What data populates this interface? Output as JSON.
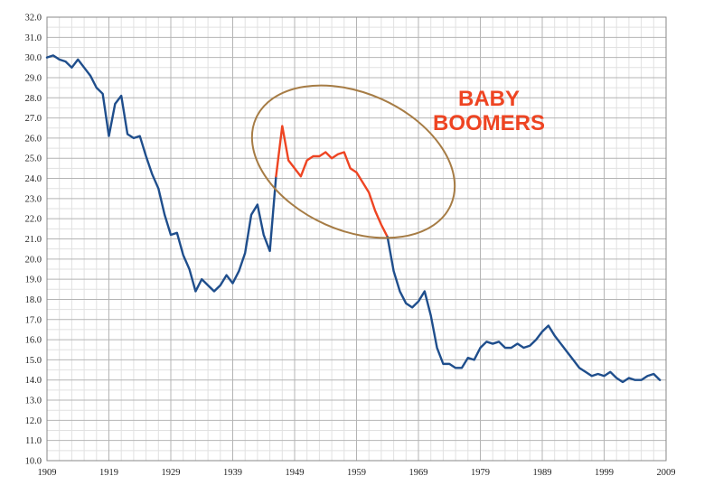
{
  "chart_data": {
    "type": "line",
    "title": "",
    "xlabel": "",
    "ylabel": "",
    "xlim": [
      1909,
      2009
    ],
    "ylim": [
      10,
      32
    ],
    "x_ticks": [
      "1909",
      "1919",
      "1929",
      "1939",
      "1949",
      "1959",
      "1969",
      "1979",
      "1989",
      "1999",
      "2009"
    ],
    "y_ticks": [
      "10.0",
      "11.0",
      "12.0",
      "13.0",
      "14.0",
      "15.0",
      "16.0",
      "17.0",
      "18.0",
      "19.0",
      "20.0",
      "21.0",
      "22.0",
      "23.0",
      "24.0",
      "25.0",
      "26.0",
      "27.0",
      "28.0",
      "29.0",
      "30.0",
      "31.0",
      "32.0"
    ],
    "grid": true,
    "colors": {
      "main": "#1f4e8c",
      "highlight": "#ee4422",
      "ellipse": "#a67c45",
      "grid_major": "#b4b4b4",
      "grid_minor": "#e1e1e1"
    },
    "annotation": {
      "lines": [
        "BABY",
        "BOOMERS"
      ],
      "color": "#ee4422"
    },
    "series": [
      {
        "points": [
          [
            1909,
            30.0
          ],
          [
            1910,
            30.1
          ],
          [
            1911,
            29.9
          ],
          [
            1912,
            29.8
          ],
          [
            1913,
            29.5
          ],
          [
            1914,
            29.9
          ],
          [
            1915,
            29.5
          ],
          [
            1916,
            29.1
          ],
          [
            1917,
            28.5
          ],
          [
            1918,
            28.2
          ],
          [
            1919,
            26.1
          ],
          [
            1920,
            27.7
          ],
          [
            1921,
            28.1
          ],
          [
            1922,
            26.2
          ],
          [
            1923,
            26.0
          ],
          [
            1924,
            26.1
          ],
          [
            1925,
            25.1
          ],
          [
            1926,
            24.2
          ],
          [
            1927,
            23.5
          ],
          [
            1928,
            22.2
          ],
          [
            1929,
            21.2
          ],
          [
            1930,
            21.3
          ],
          [
            1931,
            20.2
          ],
          [
            1932,
            19.5
          ],
          [
            1933,
            18.4
          ],
          [
            1934,
            19.0
          ],
          [
            1935,
            18.7
          ],
          [
            1936,
            18.4
          ],
          [
            1937,
            18.7
          ],
          [
            1938,
            19.2
          ],
          [
            1939,
            18.8
          ],
          [
            1940,
            19.4
          ],
          [
            1941,
            20.3
          ],
          [
            1942,
            22.2
          ],
          [
            1943,
            22.7
          ],
          [
            1944,
            21.2
          ],
          [
            1945,
            20.4
          ],
          [
            1946,
            24.1
          ]
        ]
      },
      {
        "points": [
          [
            1946,
            24.1
          ],
          [
            1947,
            26.6
          ],
          [
            1948,
            24.9
          ],
          [
            1949,
            24.5
          ],
          [
            1950,
            24.1
          ],
          [
            1951,
            24.9
          ],
          [
            1952,
            25.1
          ],
          [
            1953,
            25.1
          ],
          [
            1954,
            25.3
          ],
          [
            1955,
            25.0
          ],
          [
            1956,
            25.2
          ],
          [
            1957,
            25.3
          ],
          [
            1958,
            24.5
          ],
          [
            1959,
            24.3
          ],
          [
            1960,
            23.8
          ],
          [
            1961,
            23.3
          ],
          [
            1962,
            22.4
          ],
          [
            1963,
            21.7
          ],
          [
            1964,
            21.1
          ]
        ]
      },
      {
        "points": [
          [
            1964,
            21.1
          ],
          [
            1965,
            19.4
          ],
          [
            1966,
            18.4
          ],
          [
            1967,
            17.8
          ],
          [
            1968,
            17.6
          ],
          [
            1969,
            17.9
          ],
          [
            1970,
            18.4
          ],
          [
            1971,
            17.2
          ],
          [
            1972,
            15.6
          ],
          [
            1973,
            14.8
          ],
          [
            1974,
            14.8
          ],
          [
            1975,
            14.6
          ],
          [
            1976,
            14.6
          ],
          [
            1977,
            15.1
          ],
          [
            1978,
            15.0
          ],
          [
            1979,
            15.6
          ],
          [
            1980,
            15.9
          ],
          [
            1981,
            15.8
          ],
          [
            1982,
            15.9
          ],
          [
            1983,
            15.6
          ],
          [
            1984,
            15.6
          ],
          [
            1985,
            15.8
          ],
          [
            1986,
            15.6
          ],
          [
            1987,
            15.7
          ],
          [
            1988,
            16.0
          ],
          [
            1989,
            16.4
          ],
          [
            1990,
            16.7
          ],
          [
            1991,
            16.2
          ],
          [
            1992,
            15.8
          ],
          [
            1993,
            15.4
          ],
          [
            1994,
            15.0
          ],
          [
            1995,
            14.6
          ],
          [
            1996,
            14.4
          ],
          [
            1997,
            14.2
          ],
          [
            1998,
            14.3
          ],
          [
            1999,
            14.2
          ],
          [
            2000,
            14.4
          ],
          [
            2001,
            14.1
          ],
          [
            2002,
            13.9
          ],
          [
            2003,
            14.1
          ],
          [
            2004,
            14.0
          ],
          [
            2005,
            14.0
          ],
          [
            2006,
            14.2
          ],
          [
            2007,
            14.3
          ],
          [
            2008,
            14.0
          ]
        ]
      }
    ]
  }
}
